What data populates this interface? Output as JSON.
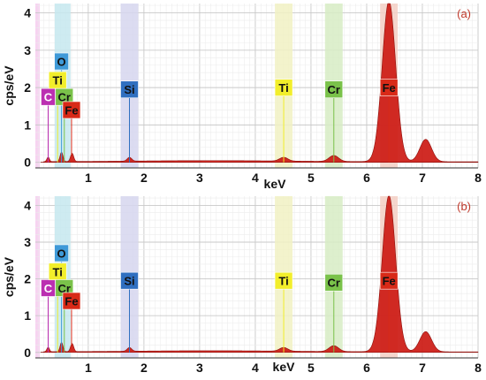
{
  "chart_data": [
    {
      "type": "line",
      "panel_label": "(a)",
      "xlabel": "keV",
      "ylabel": "cps/eV",
      "xlim": [
        0.05,
        8
      ],
      "ylim": [
        -0.15,
        4.25
      ],
      "x_ticks": [
        "1",
        "2",
        "3",
        "4",
        "5",
        "6",
        "7",
        "8"
      ],
      "y_ticks": [
        "0",
        "1",
        "2",
        "3",
        "4"
      ],
      "grid": true,
      "spectrum_color": "#cc1a14",
      "peaks": [
        {
          "x": 0.28,
          "y": 0.12
        },
        {
          "x": 0.52,
          "y": 0.25
        },
        {
          "x": 0.71,
          "y": 0.22
        },
        {
          "x": 1.74,
          "y": 0.1
        },
        {
          "x": 4.51,
          "y": 0.1
        },
        {
          "x": 5.41,
          "y": 0.16
        },
        {
          "x": 6.4,
          "y": 4.3
        },
        {
          "x": 7.06,
          "y": 0.6
        }
      ],
      "element_markers": [
        {
          "label": "C",
          "x": 0.28,
          "label_y": 1.75,
          "bg": "#bb2fb1",
          "fg": "#ffffff",
          "band": "#f3c6ee"
        },
        {
          "label": "O",
          "x": 0.52,
          "label_y": 2.7,
          "bg": "#3f9ad8",
          "fg": "#111111",
          "band": "#c5e8ef"
        },
        {
          "label": "Ti",
          "x": 0.45,
          "label_y": 2.2,
          "bg": "#f2ee2b",
          "fg": "#111111",
          "band": "#f1f1c3"
        },
        {
          "label": "Cr",
          "x": 0.57,
          "label_y": 1.75,
          "bg": "#7ac24a",
          "fg": "#111111",
          "band": "#d7ecc4"
        },
        {
          "label": "Fe",
          "x": 0.7,
          "label_y": 1.4,
          "bg": "#d82a18",
          "fg": "#111111",
          "band": "#f3cfc4"
        },
        {
          "label": "Si",
          "x": 1.74,
          "label_y": 1.95,
          "bg": "#2f6fc0",
          "fg": "#111111",
          "band": "#d6d6ee"
        },
        {
          "label": "Ti",
          "x": 4.51,
          "label_y": 2.0,
          "bg": "#f2ee2b",
          "fg": "#111111",
          "band": "#f1f1c3"
        },
        {
          "label": "Cr",
          "x": 5.41,
          "label_y": 1.95,
          "bg": "#7ac24a",
          "fg": "#111111",
          "band": "#d7ecc4"
        },
        {
          "label": "Fe",
          "x": 6.4,
          "label_y": 2.0,
          "bg": "#d82a18",
          "fg": "#111111",
          "band": "#f3cfc4"
        }
      ]
    },
    {
      "type": "line",
      "panel_label": "(b)",
      "xlabel": "keV",
      "ylabel": "cps/eV",
      "xlim": [
        0.05,
        8
      ],
      "ylim": [
        -0.15,
        4.25
      ],
      "x_ticks": [
        "1",
        "2",
        "3",
        "4",
        "5",
        "6",
        "7",
        "8"
      ],
      "y_ticks": [
        "0",
        "1",
        "2",
        "3",
        "4"
      ],
      "grid": true,
      "spectrum_color": "#cc1a14",
      "peaks": [
        {
          "x": 0.28,
          "y": 0.12
        },
        {
          "x": 0.52,
          "y": 0.25
        },
        {
          "x": 0.71,
          "y": 0.22
        },
        {
          "x": 1.74,
          "y": 0.1
        },
        {
          "x": 4.51,
          "y": 0.1
        },
        {
          "x": 5.41,
          "y": 0.16
        },
        {
          "x": 6.4,
          "y": 4.25
        },
        {
          "x": 7.06,
          "y": 0.55
        }
      ],
      "element_markers": [
        {
          "label": "C",
          "x": 0.28,
          "label_y": 1.75,
          "bg": "#bb2fb1",
          "fg": "#ffffff",
          "band": "#f3c6ee"
        },
        {
          "label": "O",
          "x": 0.52,
          "label_y": 2.7,
          "bg": "#3f9ad8",
          "fg": "#111111",
          "band": "#c5e8ef"
        },
        {
          "label": "Ti",
          "x": 0.45,
          "label_y": 2.2,
          "bg": "#f2ee2b",
          "fg": "#111111",
          "band": "#f1f1c3"
        },
        {
          "label": "Cr",
          "x": 0.57,
          "label_y": 1.75,
          "bg": "#7ac24a",
          "fg": "#111111",
          "band": "#d7ecc4"
        },
        {
          "label": "Fe",
          "x": 0.7,
          "label_y": 1.4,
          "bg": "#d82a18",
          "fg": "#111111",
          "band": "#f3cfc4"
        },
        {
          "label": "Si",
          "x": 1.74,
          "label_y": 1.95,
          "bg": "#2f6fc0",
          "fg": "#111111",
          "band": "#d6d6ee"
        },
        {
          "label": "Ti",
          "x": 4.51,
          "label_y": 1.95,
          "bg": "#f2ee2b",
          "fg": "#111111",
          "band": "#f1f1c3"
        },
        {
          "label": "Cr",
          "x": 5.41,
          "label_y": 1.9,
          "bg": "#7ac24a",
          "fg": "#111111",
          "band": "#d7ecc4"
        },
        {
          "label": "Fe",
          "x": 6.4,
          "label_y": 1.95,
          "bg": "#d82a18",
          "fg": "#111111",
          "band": "#f3cfc4"
        }
      ]
    }
  ]
}
